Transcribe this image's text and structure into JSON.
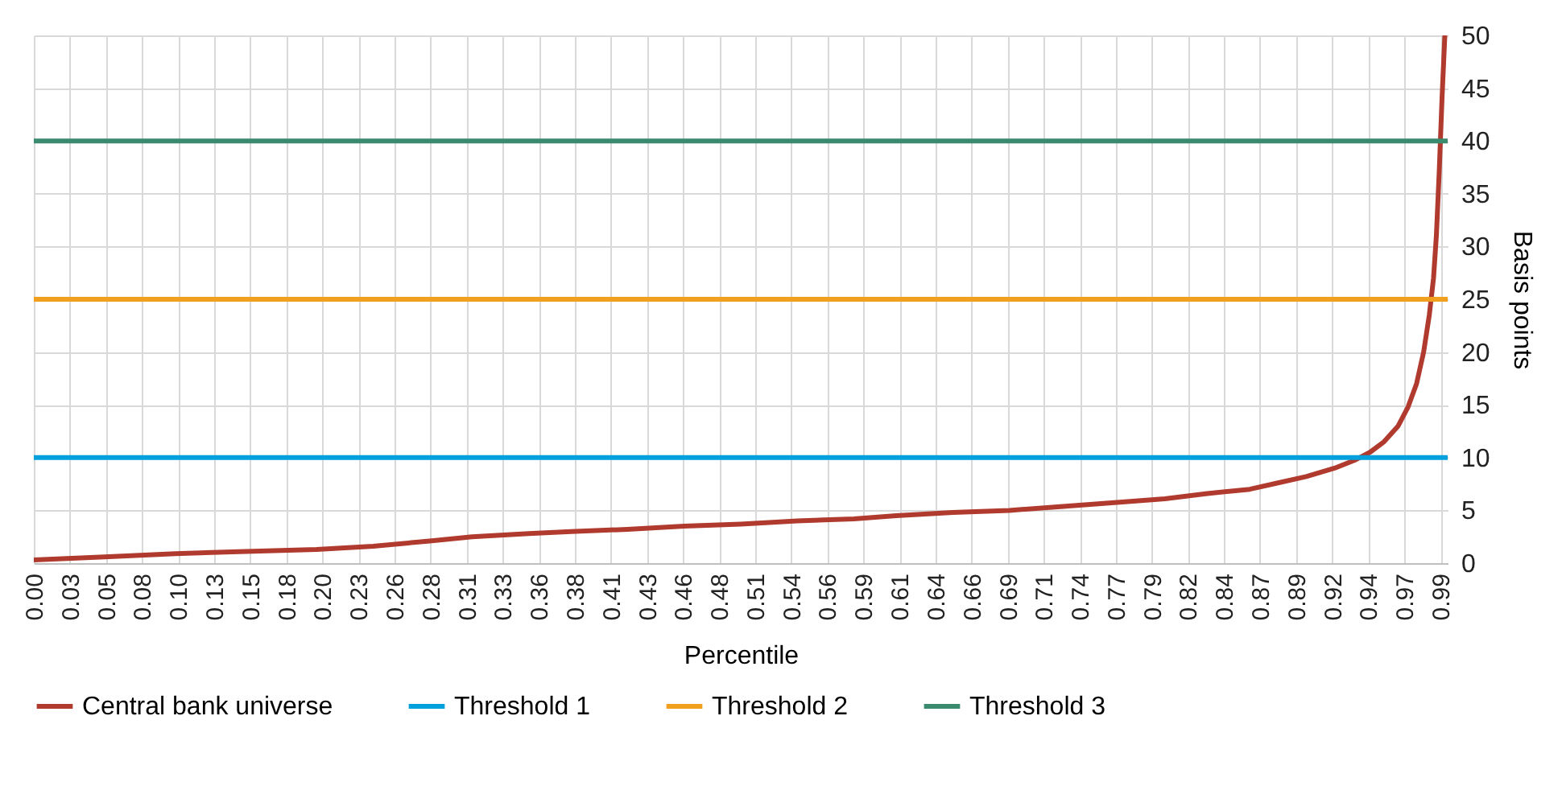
{
  "chart_data": {
    "type": "line",
    "xlabel": "Percentile",
    "ylabel": "Basis points",
    "xlim": [
      0,
      1
    ],
    "ylim": [
      0,
      50
    ],
    "xticks": [
      {
        "value": 0,
        "label": "0.00"
      },
      {
        "value": 0.0255,
        "label": "0.03"
      },
      {
        "value": 0.051,
        "label": "0.05"
      },
      {
        "value": 0.0765,
        "label": "0.08"
      },
      {
        "value": 0.102,
        "label": "0.10"
      },
      {
        "value": 0.1276,
        "label": "0.13"
      },
      {
        "value": 0.1531,
        "label": "0.15"
      },
      {
        "value": 0.1786,
        "label": "0.18"
      },
      {
        "value": 0.2041,
        "label": "0.20"
      },
      {
        "value": 0.2296,
        "label": "0.23"
      },
      {
        "value": 0.2551,
        "label": "0.26"
      },
      {
        "value": 0.2806,
        "label": "0.28"
      },
      {
        "value": 0.3061,
        "label": "0.31"
      },
      {
        "value": 0.3316,
        "label": "0.33"
      },
      {
        "value": 0.3571,
        "label": "0.36"
      },
      {
        "value": 0.3827,
        "label": "0.38"
      },
      {
        "value": 0.4082,
        "label": "0.41"
      },
      {
        "value": 0.4337,
        "label": "0.43"
      },
      {
        "value": 0.4592,
        "label": "0.46"
      },
      {
        "value": 0.4847,
        "label": "0.48"
      },
      {
        "value": 0.5102,
        "label": "0.51"
      },
      {
        "value": 0.5357,
        "label": "0.54"
      },
      {
        "value": 0.5612,
        "label": "0.56"
      },
      {
        "value": 0.5867,
        "label": "0.59"
      },
      {
        "value": 0.6122,
        "label": "0.61"
      },
      {
        "value": 0.6378,
        "label": "0.64"
      },
      {
        "value": 0.6633,
        "label": "0.66"
      },
      {
        "value": 0.6888,
        "label": "0.69"
      },
      {
        "value": 0.7143,
        "label": "0.71"
      },
      {
        "value": 0.7398,
        "label": "0.74"
      },
      {
        "value": 0.7653,
        "label": "0.77"
      },
      {
        "value": 0.7908,
        "label": "0.79"
      },
      {
        "value": 0.8163,
        "label": "0.82"
      },
      {
        "value": 0.8418,
        "label": "0.84"
      },
      {
        "value": 0.8673,
        "label": "0.87"
      },
      {
        "value": 0.8929,
        "label": "0.89"
      },
      {
        "value": 0.9184,
        "label": "0.92"
      },
      {
        "value": 0.9439,
        "label": "0.94"
      },
      {
        "value": 0.9694,
        "label": "0.97"
      },
      {
        "value": 0.9949,
        "label": "0.99"
      }
    ],
    "yticks": [
      0,
      5,
      10,
      15,
      20,
      25,
      30,
      35,
      40,
      45,
      50
    ],
    "grid": true,
    "legend": "bottom",
    "marker": "none",
    "series": [
      {
        "name": "Central bank universe",
        "color": "#b03a2e",
        "x": [
          0,
          0.05,
          0.1,
          0.15,
          0.2,
          0.24,
          0.28,
          0.31,
          0.35,
          0.38,
          0.42,
          0.46,
          0.5,
          0.54,
          0.58,
          0.61,
          0.65,
          0.69,
          0.73,
          0.77,
          0.8,
          0.83,
          0.86,
          0.88,
          0.9,
          0.92,
          0.935,
          0.945,
          0.955,
          0.965,
          0.972,
          0.978,
          0.983,
          0.987,
          0.99,
          0.992,
          0.994,
          0.996,
          0.998
        ],
        "values": [
          0.3,
          0.6,
          0.9,
          1.1,
          1.3,
          1.6,
          2.1,
          2.5,
          2.8,
          3.0,
          3.2,
          3.5,
          3.7,
          4.0,
          4.2,
          4.5,
          4.8,
          5.0,
          5.4,
          5.8,
          6.1,
          6.6,
          7.0,
          7.6,
          8.2,
          9.0,
          9.8,
          10.5,
          11.5,
          13.0,
          14.8,
          17.0,
          20.0,
          23.5,
          27.0,
          31.0,
          37.0,
          44.0,
          50.0
        ]
      },
      {
        "name": "Threshold 1",
        "color": "#00a0dc",
        "x": [
          0,
          1
        ],
        "values": [
          10,
          10
        ]
      },
      {
        "name": "Threshold 2",
        "color": "#f0a01e",
        "x": [
          0,
          1
        ],
        "values": [
          25,
          25
        ]
      },
      {
        "name": "Threshold 3",
        "color": "#3a8a6e",
        "x": [
          0,
          1
        ],
        "values": [
          40,
          40
        ]
      }
    ]
  }
}
